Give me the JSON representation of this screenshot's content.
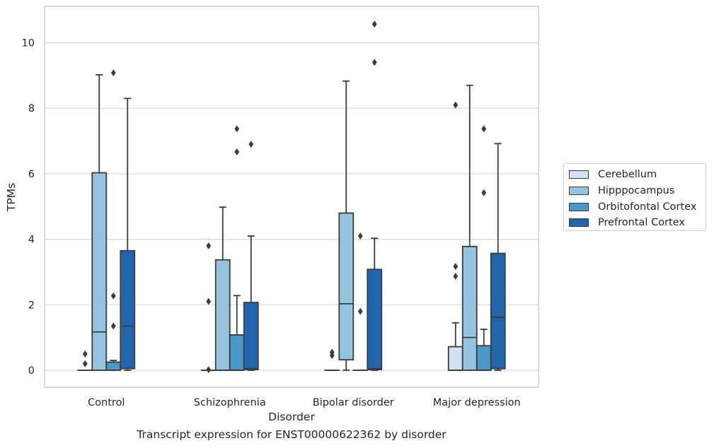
{
  "caption": "Transcript expression for ENST00000622362 by disorder",
  "chart_data": {
    "type": "boxplot",
    "xlabel": "Disorder",
    "ylabel": "TPMs",
    "ylim": [
      -0.5,
      11.1
    ],
    "yticks": [
      0,
      2,
      4,
      6,
      8,
      10
    ],
    "grid": "horizontal",
    "legend_position": "right",
    "categories": [
      "Control",
      "Schizophrenia",
      "Bipolar disorder",
      "Major depression"
    ],
    "series": [
      {
        "name": "Cerebellum",
        "color": "#d0e1f2",
        "boxes": [
          {
            "low": 0,
            "q1": 0,
            "median": 0,
            "q3": 0,
            "high": 0,
            "outliers": [
              0.2,
              0.5
            ]
          },
          {
            "low": 0,
            "q1": 0,
            "median": 0,
            "q3": 0,
            "high": 0,
            "outliers": [
              0.02,
              2.1,
              3.8
            ]
          },
          {
            "low": 0,
            "q1": 0,
            "median": 0,
            "q3": 0,
            "high": 0,
            "outliers": [
              0.45,
              0.55
            ]
          },
          {
            "low": 0,
            "q1": 0,
            "median": 0,
            "q3": 0.72,
            "high": 1.45,
            "outliers": [
              2.87,
              3.17,
              8.1
            ]
          }
        ]
      },
      {
        "name": "Hipppocampus",
        "color": "#94c4df",
        "boxes": [
          {
            "low": 0,
            "q1": 0,
            "median": 1.17,
            "q3": 6.03,
            "high": 9.02,
            "outliers": []
          },
          {
            "low": 0,
            "q1": 0,
            "median": 0,
            "q3": 3.37,
            "high": 4.98,
            "outliers": []
          },
          {
            "low": 0,
            "q1": 0.32,
            "median": 2.03,
            "q3": 4.8,
            "high": 8.83,
            "outliers": []
          },
          {
            "low": 0,
            "q1": 0,
            "median": 1.0,
            "q3": 3.78,
            "high": 8.7,
            "outliers": []
          }
        ]
      },
      {
        "name": "Orbitofontal Cortex",
        "color": "#4a98c9",
        "boxes": [
          {
            "low": 0,
            "q1": 0,
            "median": 0.25,
            "q3": 0.25,
            "high": 0.3,
            "outliers": [
              1.35,
              2.27,
              9.08
            ]
          },
          {
            "low": 0,
            "q1": 0,
            "median": 0,
            "q3": 1.08,
            "high": 2.28,
            "outliers": [
              6.67,
              7.37
            ]
          },
          {
            "low": 0,
            "q1": 0,
            "median": 0,
            "q3": 0,
            "high": 0,
            "outliers": [
              1.8,
              4.1
            ]
          },
          {
            "low": 0,
            "q1": 0,
            "median": 0,
            "q3": 0.75,
            "high": 1.25,
            "outliers": [
              5.42,
              7.37
            ]
          }
        ]
      },
      {
        "name": "Prefrontal Cortex",
        "color": "#2166ac",
        "boxes": [
          {
            "low": 0,
            "q1": 0.05,
            "median": 1.35,
            "q3": 3.65,
            "high": 8.3,
            "outliers": []
          },
          {
            "low": 0,
            "q1": 0.02,
            "median": 0.05,
            "q3": 2.07,
            "high": 4.1,
            "outliers": [
              6.9
            ]
          },
          {
            "low": 0,
            "q1": 0.02,
            "median": 0.05,
            "q3": 3.08,
            "high": 4.03,
            "outliers": [
              9.4,
              10.57
            ]
          },
          {
            "low": 0,
            "q1": 0.05,
            "median": 1.62,
            "q3": 3.57,
            "high": 6.92,
            "outliers": []
          }
        ]
      }
    ]
  }
}
